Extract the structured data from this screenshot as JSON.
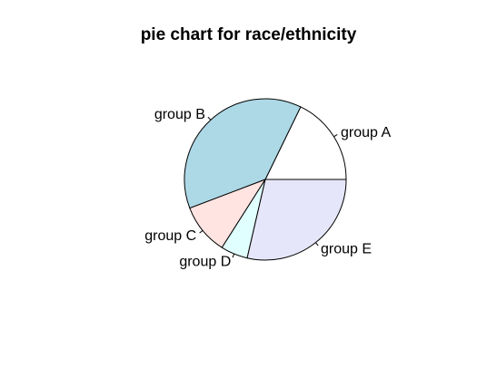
{
  "chart_data": {
    "type": "pie",
    "title": "pie chart for race/ethnicity",
    "categories": [
      "group A",
      "group B",
      "group C",
      "group D",
      "group E"
    ],
    "values": [
      89,
      190,
      51,
      27,
      143
    ],
    "colors": [
      "#ffffff",
      "#add8e6",
      "#ffe4e1",
      "#e0ffff",
      "#e6e6fa"
    ],
    "border_color": "#000000",
    "start_angle_deg": 0,
    "direction": "counterclockwise"
  }
}
